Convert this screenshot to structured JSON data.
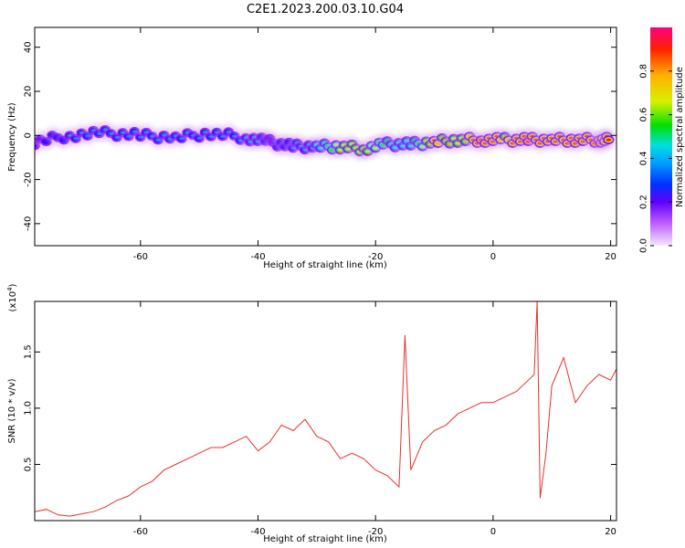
{
  "title": "C2E1.2023.200.03.10.G04",
  "colors": {
    "snr_line": "#e8302a",
    "colormap": [
      "#f4e8ff",
      "#d07bff",
      "#8a00ff",
      "#2a00ff",
      "#0077ff",
      "#00e0e0",
      "#00e000",
      "#d8f000",
      "#ffb000",
      "#ff2000",
      "#ff0080"
    ]
  },
  "chart_data": [
    {
      "type": "heatmap",
      "title": "C2E1.2023.200.03.10.G04",
      "xlabel": "Height of straight line (km)",
      "ylabel": "Frequency (Hz)",
      "xlim": [
        -78,
        21
      ],
      "ylim": [
        -50,
        49
      ],
      "xticks": [
        -60,
        -40,
        -20,
        0,
        20
      ],
      "yticks": [
        40,
        20,
        0,
        -20,
        -40
      ],
      "colorbar": {
        "label": "Normalized spectral amplitude",
        "range": [
          0.0,
          1.0
        ],
        "ticks": [
          0.0,
          0.2,
          0.4,
          0.6,
          0.8
        ]
      },
      "ridge": [
        {
          "x": -78,
          "y": -3,
          "amp": 0.3
        },
        {
          "x": -72,
          "y": 0,
          "amp": 0.35
        },
        {
          "x": -66,
          "y": 1,
          "amp": 0.4
        },
        {
          "x": -60,
          "y": 0,
          "amp": 0.38
        },
        {
          "x": -54,
          "y": -1,
          "amp": 0.4
        },
        {
          "x": -48,
          "y": 1,
          "amp": 0.42
        },
        {
          "x": -42,
          "y": -1,
          "amp": 0.4
        },
        {
          "x": -38,
          "y": -3,
          "amp": 0.3
        },
        {
          "x": -34,
          "y": -5,
          "amp": 0.35
        },
        {
          "x": -30,
          "y": -5,
          "amp": 0.45
        },
        {
          "x": -26,
          "y": -5,
          "amp": 0.7
        },
        {
          "x": -22,
          "y": -6,
          "amp": 0.75
        },
        {
          "x": -18,
          "y": -4,
          "amp": 0.55
        },
        {
          "x": -14,
          "y": -4,
          "amp": 0.5
        },
        {
          "x": -10,
          "y": -3,
          "amp": 0.85
        },
        {
          "x": -6,
          "y": -2,
          "amp": 0.7
        },
        {
          "x": -2,
          "y": -2,
          "amp": 0.95
        },
        {
          "x": 2,
          "y": -2,
          "amp": 0.8
        },
        {
          "x": 6,
          "y": -2,
          "amp": 0.95
        },
        {
          "x": 10,
          "y": -2,
          "amp": 0.85
        },
        {
          "x": 14,
          "y": -2,
          "amp": 0.9
        },
        {
          "x": 18,
          "y": -2,
          "amp": 0.95
        },
        {
          "x": 20,
          "y": -2,
          "amp": 0.9
        }
      ]
    },
    {
      "type": "line",
      "xlabel": "Height of straight line (km)",
      "ylabel": "SNR (10 * v/v)",
      "yscale_label": "(x10",
      "yscale_exp": "4",
      "xlim": [
        -78,
        21
      ],
      "ylim": [
        0.0,
        1.95
      ],
      "xticks": [
        -60,
        -40,
        -20,
        0,
        20
      ],
      "yticks": [
        0.5,
        1.0,
        1.5
      ],
      "series": [
        {
          "x": [
            -78,
            -76,
            -74,
            -72,
            -70,
            -68,
            -66,
            -64,
            -62,
            -60,
            -58,
            -56,
            -54,
            -52,
            -50,
            -48,
            -46,
            -44,
            -42,
            -40,
            -38,
            -36,
            -34,
            -32,
            -30,
            -28,
            -26,
            -24,
            -22,
            -20,
            -18,
            -16,
            -15,
            -14,
            -12,
            -10,
            -8,
            -6,
            -4,
            -2,
            0,
            2,
            4,
            6,
            7,
            7.5,
            8,
            9,
            10,
            12,
            14,
            16,
            18,
            20,
            21
          ],
          "y": [
            0.08,
            0.1,
            0.05,
            0.04,
            0.06,
            0.08,
            0.12,
            0.18,
            0.22,
            0.3,
            0.35,
            0.45,
            0.5,
            0.55,
            0.6,
            0.65,
            0.65,
            0.7,
            0.75,
            0.62,
            0.7,
            0.85,
            0.8,
            0.9,
            0.75,
            0.7,
            0.55,
            0.6,
            0.55,
            0.45,
            0.4,
            0.3,
            1.65,
            0.45,
            0.7,
            0.8,
            0.85,
            0.95,
            1.0,
            1.05,
            1.05,
            1.1,
            1.15,
            1.25,
            1.3,
            1.95,
            0.2,
            0.6,
            1.2,
            1.45,
            1.05,
            1.2,
            1.3,
            1.25,
            1.35
          ]
        }
      ]
    }
  ]
}
